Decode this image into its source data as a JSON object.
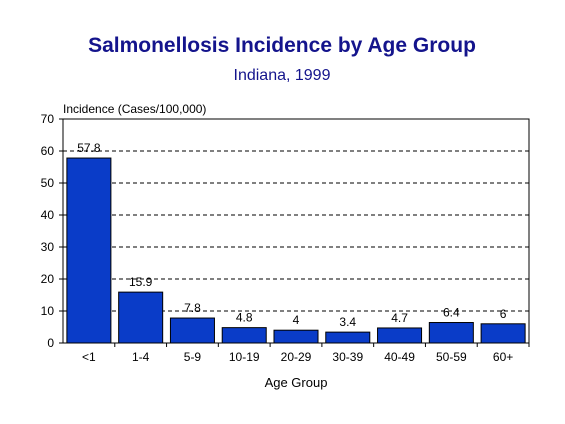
{
  "chart_data": {
    "type": "bar",
    "title": "Salmonellosis Incidence by Age Group",
    "subtitle": "Indiana, 1999",
    "ylabel": "Incidence (Cases/100,000)",
    "xlabel": "Age Group",
    "categories": [
      "<1",
      "1-4",
      "5-9",
      "10-19",
      "20-29",
      "30-39",
      "40-49",
      "50-59",
      "60+"
    ],
    "values": [
      57.8,
      15.9,
      7.8,
      4.8,
      4,
      3.4,
      4.7,
      6.4,
      6
    ],
    "data_labels": [
      "57.8",
      "15.9",
      "7.8",
      "4.8",
      "4",
      "3.4",
      "4.7",
      "6.4",
      "6"
    ],
    "ylim": [
      0,
      70
    ],
    "yticks": [
      "0",
      "10",
      "20",
      "30",
      "40",
      "50",
      "60",
      "70"
    ],
    "grid": true,
    "grid_style": "dashed",
    "bar_color": "#0a3cc8",
    "title_color": "#14148c"
  }
}
